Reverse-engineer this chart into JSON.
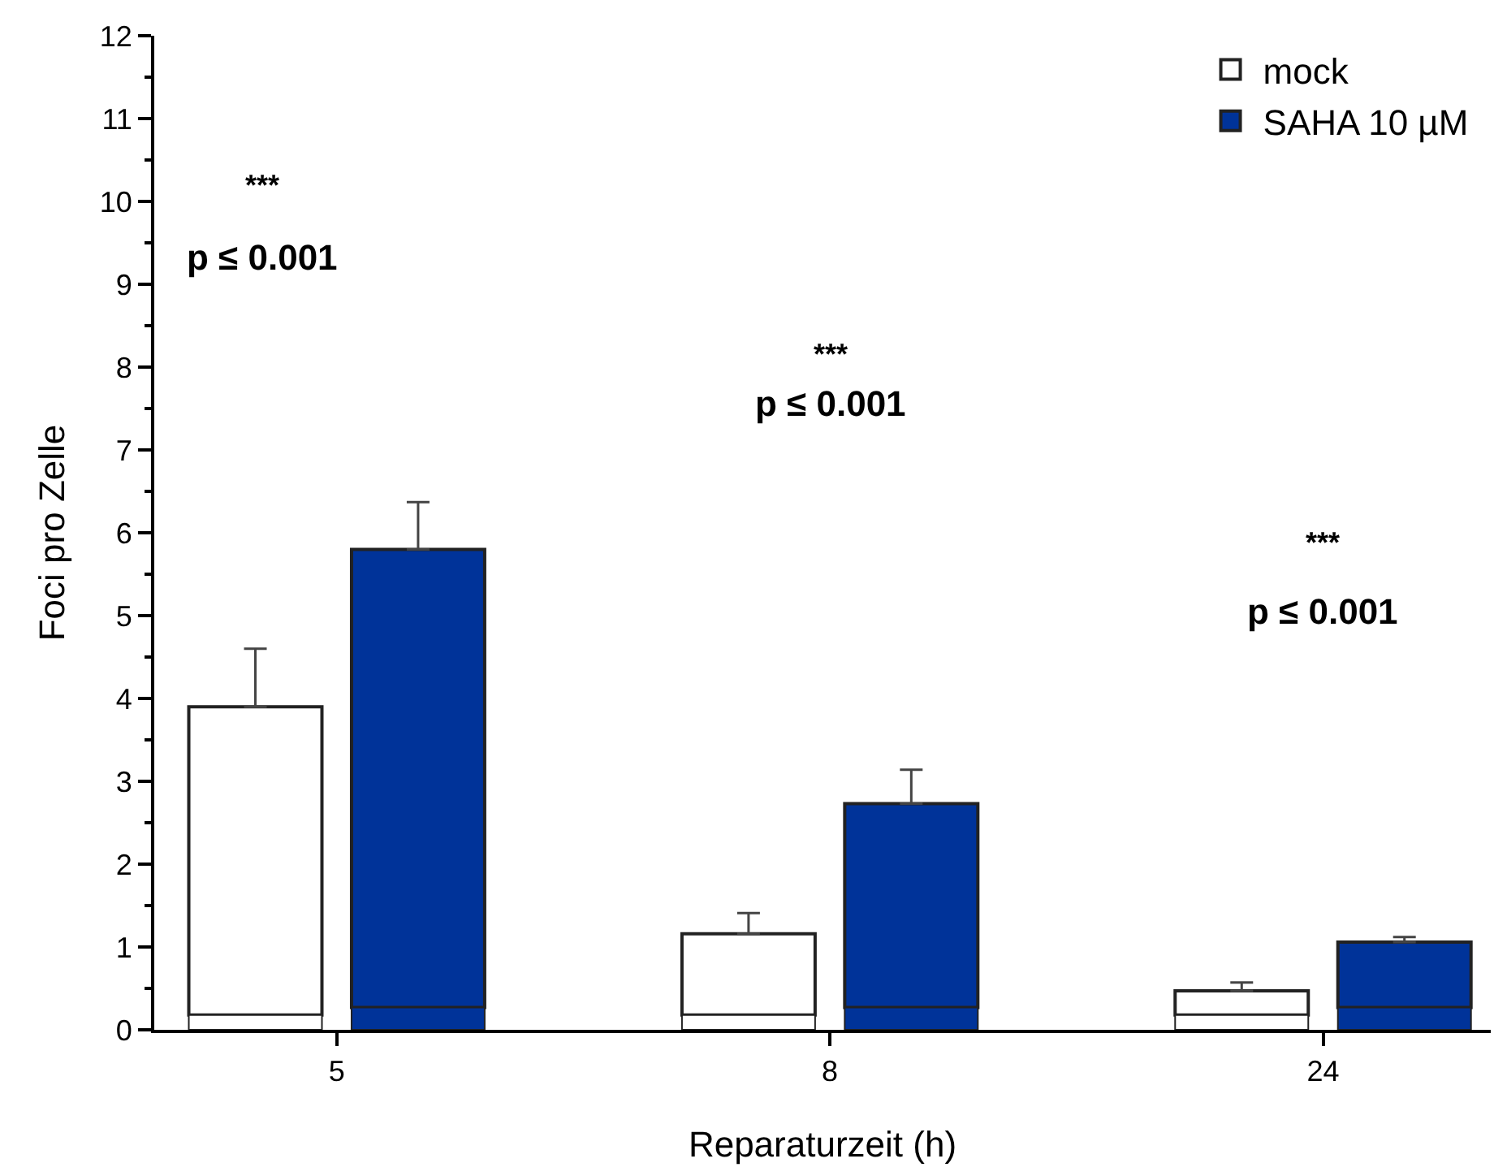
{
  "chart_data": {
    "type": "bar",
    "xlabel": "Reparaturzeit (h)",
    "ylabel": "Foci pro Zelle",
    "categories": [
      "5",
      "8",
      "24"
    ],
    "series": [
      {
        "name": "mock",
        "color": "#ffffff",
        "values": [
          3.72,
          0.98,
          0.29
        ],
        "base": [
          0.18,
          0.18,
          0.18
        ],
        "errors": [
          [
            3.9,
            4.6
          ],
          [
            1.16,
            1.41
          ],
          [
            0.47,
            0.57
          ]
        ]
      },
      {
        "name": "SAHA 10 µM",
        "color": "#003399",
        "values": [
          5.53,
          2.46,
          0.79
        ],
        "base": [
          0.27,
          0.27,
          0.27
        ],
        "errors": [
          [
            5.8,
            6.37
          ],
          [
            2.73,
            3.14
          ],
          [
            1.06,
            1.12
          ]
        ]
      },
      {
        "color": "#ffffff",
        "values": [
          0.18,
          0.18,
          0.18
        ]
      },
      {
        "color": "#003399",
        "values": [
          0.27,
          0.27,
          0.27
        ]
      }
    ],
    "ylim": [
      0,
      12
    ],
    "yticks": [
      0,
      1,
      2,
      3,
      4,
      5,
      6,
      7,
      8,
      9,
      10,
      11,
      12
    ],
    "annotations": [
      "***",
      "p ≤ 0.001",
      "***",
      "p ≤ 0.001",
      "***",
      "p ≤ 0.001"
    ],
    "grid": false,
    "legend": "top right"
  }
}
